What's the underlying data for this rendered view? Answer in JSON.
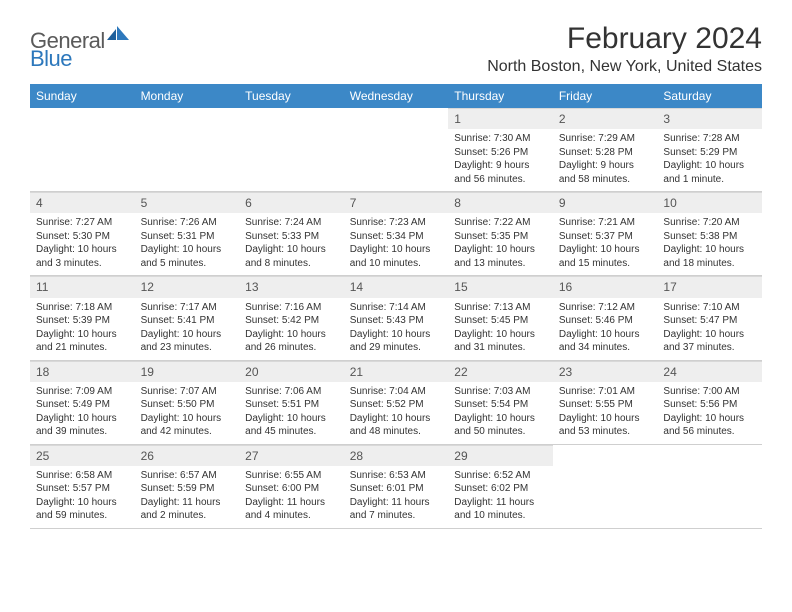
{
  "brand": {
    "part1": "General",
    "part2": "Blue"
  },
  "colors": {
    "header_bg": "#3c88c7",
    "daynum_bg": "#eeeeee",
    "text": "#333333",
    "logo_gray": "#5a5a5a",
    "logo_blue": "#2d78bc",
    "rule": "#cfcfcf"
  },
  "title": "February 2024",
  "location": "North Boston, New York, United States",
  "weekdays": [
    "Sunday",
    "Monday",
    "Tuesday",
    "Wednesday",
    "Thursday",
    "Friday",
    "Saturday"
  ],
  "layout": {
    "cols": 7,
    "rows": 5,
    "first_weekday_index": 4,
    "days_in_month": 29
  },
  "days": [
    {
      "n": 1,
      "sunrise": "7:30 AM",
      "sunset": "5:26 PM",
      "daylight": "9 hours and 56 minutes."
    },
    {
      "n": 2,
      "sunrise": "7:29 AM",
      "sunset": "5:28 PM",
      "daylight": "9 hours and 58 minutes."
    },
    {
      "n": 3,
      "sunrise": "7:28 AM",
      "sunset": "5:29 PM",
      "daylight": "10 hours and 1 minute."
    },
    {
      "n": 4,
      "sunrise": "7:27 AM",
      "sunset": "5:30 PM",
      "daylight": "10 hours and 3 minutes."
    },
    {
      "n": 5,
      "sunrise": "7:26 AM",
      "sunset": "5:31 PM",
      "daylight": "10 hours and 5 minutes."
    },
    {
      "n": 6,
      "sunrise": "7:24 AM",
      "sunset": "5:33 PM",
      "daylight": "10 hours and 8 minutes."
    },
    {
      "n": 7,
      "sunrise": "7:23 AM",
      "sunset": "5:34 PM",
      "daylight": "10 hours and 10 minutes."
    },
    {
      "n": 8,
      "sunrise": "7:22 AM",
      "sunset": "5:35 PM",
      "daylight": "10 hours and 13 minutes."
    },
    {
      "n": 9,
      "sunrise": "7:21 AM",
      "sunset": "5:37 PM",
      "daylight": "10 hours and 15 minutes."
    },
    {
      "n": 10,
      "sunrise": "7:20 AM",
      "sunset": "5:38 PM",
      "daylight": "10 hours and 18 minutes."
    },
    {
      "n": 11,
      "sunrise": "7:18 AM",
      "sunset": "5:39 PM",
      "daylight": "10 hours and 21 minutes."
    },
    {
      "n": 12,
      "sunrise": "7:17 AM",
      "sunset": "5:41 PM",
      "daylight": "10 hours and 23 minutes."
    },
    {
      "n": 13,
      "sunrise": "7:16 AM",
      "sunset": "5:42 PM",
      "daylight": "10 hours and 26 minutes."
    },
    {
      "n": 14,
      "sunrise": "7:14 AM",
      "sunset": "5:43 PM",
      "daylight": "10 hours and 29 minutes."
    },
    {
      "n": 15,
      "sunrise": "7:13 AM",
      "sunset": "5:45 PM",
      "daylight": "10 hours and 31 minutes."
    },
    {
      "n": 16,
      "sunrise": "7:12 AM",
      "sunset": "5:46 PM",
      "daylight": "10 hours and 34 minutes."
    },
    {
      "n": 17,
      "sunrise": "7:10 AM",
      "sunset": "5:47 PM",
      "daylight": "10 hours and 37 minutes."
    },
    {
      "n": 18,
      "sunrise": "7:09 AM",
      "sunset": "5:49 PM",
      "daylight": "10 hours and 39 minutes."
    },
    {
      "n": 19,
      "sunrise": "7:07 AM",
      "sunset": "5:50 PM",
      "daylight": "10 hours and 42 minutes."
    },
    {
      "n": 20,
      "sunrise": "7:06 AM",
      "sunset": "5:51 PM",
      "daylight": "10 hours and 45 minutes."
    },
    {
      "n": 21,
      "sunrise": "7:04 AM",
      "sunset": "5:52 PM",
      "daylight": "10 hours and 48 minutes."
    },
    {
      "n": 22,
      "sunrise": "7:03 AM",
      "sunset": "5:54 PM",
      "daylight": "10 hours and 50 minutes."
    },
    {
      "n": 23,
      "sunrise": "7:01 AM",
      "sunset": "5:55 PM",
      "daylight": "10 hours and 53 minutes."
    },
    {
      "n": 24,
      "sunrise": "7:00 AM",
      "sunset": "5:56 PM",
      "daylight": "10 hours and 56 minutes."
    },
    {
      "n": 25,
      "sunrise": "6:58 AM",
      "sunset": "5:57 PM",
      "daylight": "10 hours and 59 minutes."
    },
    {
      "n": 26,
      "sunrise": "6:57 AM",
      "sunset": "5:59 PM",
      "daylight": "11 hours and 2 minutes."
    },
    {
      "n": 27,
      "sunrise": "6:55 AM",
      "sunset": "6:00 PM",
      "daylight": "11 hours and 4 minutes."
    },
    {
      "n": 28,
      "sunrise": "6:53 AM",
      "sunset": "6:01 PM",
      "daylight": "11 hours and 7 minutes."
    },
    {
      "n": 29,
      "sunrise": "6:52 AM",
      "sunset": "6:02 PM",
      "daylight": "11 hours and 10 minutes."
    }
  ],
  "labels": {
    "sunrise": "Sunrise: ",
    "sunset": "Sunset: ",
    "daylight": "Daylight: "
  }
}
